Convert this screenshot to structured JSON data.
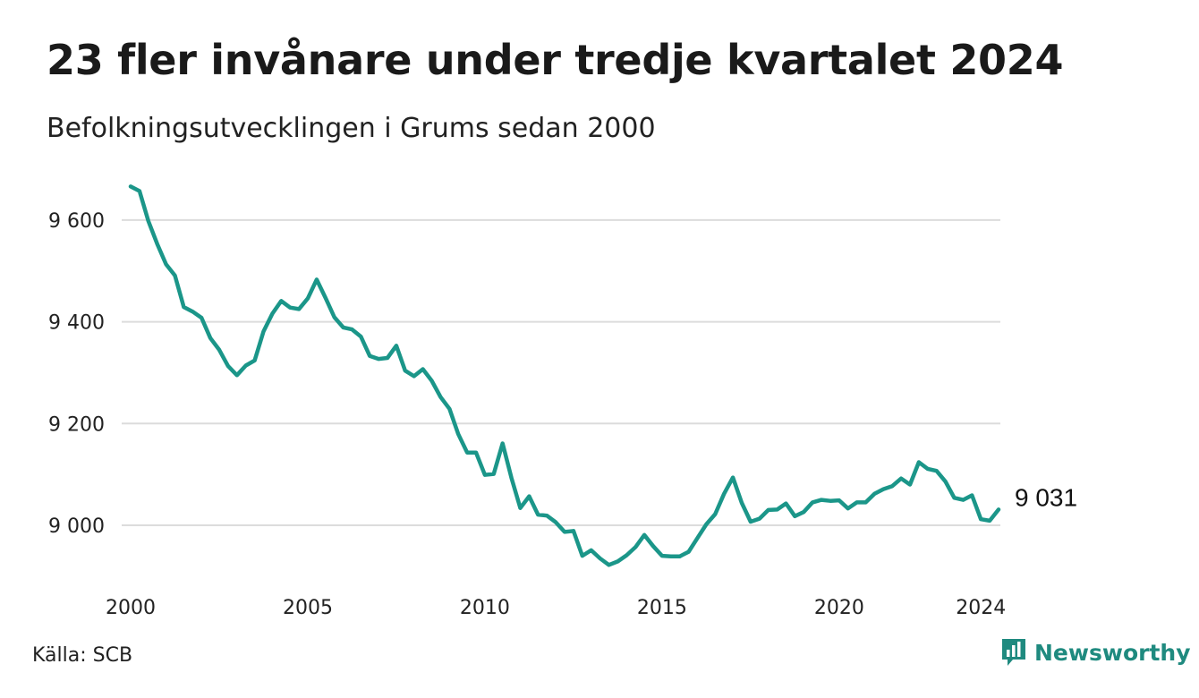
{
  "title": "23 fler invånare under tredje kvartalet 2024",
  "subtitle": "Befolkningsutvecklingen i Grums sedan 2000",
  "source": "Källa: SCB",
  "brand": {
    "name": "Newsworthy",
    "icon": "newsworthy-logo-icon",
    "color": "#1f8a7f"
  },
  "colors": {
    "line": "#1b9689",
    "grid": "#dcdcdc"
  },
  "chart_data": {
    "type": "line",
    "title": "23 fler invånare under tredje kvartalet 2024",
    "subtitle": "Befolkningsutvecklingen i Grums sedan 2000",
    "xlabel": "",
    "ylabel": "",
    "frequency": "quarterly",
    "x_start": "2000 Q1",
    "x_end": "2024 Q3",
    "xlim": [
      2000,
      2024.5
    ],
    "ylim": [
      8900,
      9700
    ],
    "grid": true,
    "legend": "none",
    "x_ticks": [
      "2000",
      "2005",
      "2010",
      "2015",
      "2020",
      "2024"
    ],
    "y_ticks": [
      9000,
      9200,
      9400,
      9600
    ],
    "y_tick_labels": [
      "9 000",
      "9 200",
      "9 400",
      "9 600"
    ],
    "end_label": "9 031",
    "series": [
      {
        "values": [
          9666,
          9657,
          9598,
          9553,
          9513,
          9491,
          9429,
          9420,
          9408,
          9368,
          9345,
          9313,
          9295,
          9314,
          9324,
          9381,
          9416,
          9441,
          9428,
          9425,
          9446,
          9483,
          9447,
          9409,
          9389,
          9385,
          9371,
          9333,
          9327,
          9329,
          9353,
          9304,
          9293,
          9307,
          9284,
          9252,
          9229,
          9179,
          9143,
          9143,
          9099,
          9101,
          9161,
          9093,
          9034,
          9057,
          9021,
          9019,
          9006,
          8987,
          8989,
          8940,
          8951,
          8935,
          8922,
          8929,
          8941,
          8957,
          8981,
          8959,
          8940,
          8939,
          8939,
          8948,
          8975,
          9002,
          9022,
          9062,
          9094,
          9044,
          9007,
          9013,
          9030,
          9031,
          9043,
          9018,
          9026,
          9045,
          9050,
          9048,
          9049,
          9033,
          9045,
          9045,
          9062,
          9071,
          9077,
          9092,
          9080,
          9124,
          9111,
          9107,
          9086,
          9054,
          9050,
          9059,
          9012,
          9009,
          9031
        ]
      }
    ]
  }
}
